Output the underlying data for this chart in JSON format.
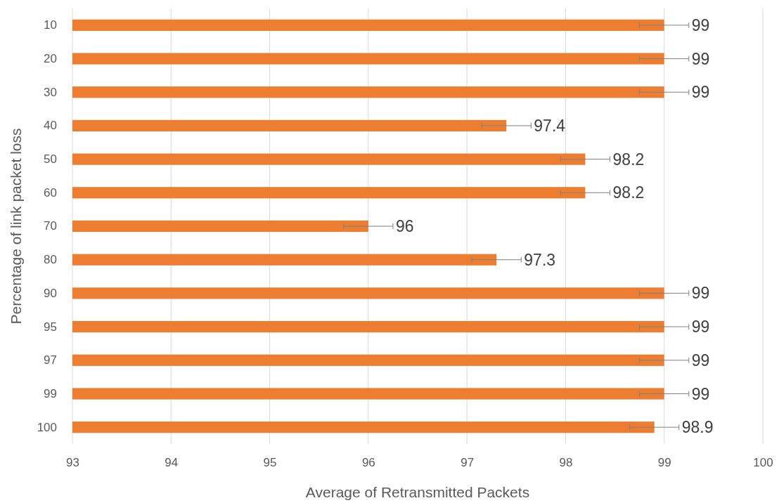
{
  "chart_data": {
    "type": "bar",
    "orientation": "horizontal",
    "xlabel": "Average of Retransmitted Packets",
    "ylabel": "Percentage of link packet loss",
    "categories": [
      "10",
      "20",
      "30",
      "40",
      "50",
      "60",
      "70",
      "80",
      "90",
      "95",
      "97",
      "99",
      "100"
    ],
    "values": [
      99,
      99,
      99,
      97.4,
      98.2,
      98.2,
      96,
      97.3,
      99,
      99,
      99,
      99,
      98.9
    ],
    "errors": [
      0.25,
      0.25,
      0.25,
      0.25,
      0.25,
      0.25,
      0.25,
      0.25,
      0.25,
      0.25,
      0.25,
      0.25,
      0.25
    ],
    "color": "#ed7d31",
    "xlim": [
      93,
      100
    ],
    "xticks": [
      93,
      94,
      95,
      96,
      97,
      98,
      99,
      100
    ],
    "grid": "x",
    "data_labels": true
  }
}
